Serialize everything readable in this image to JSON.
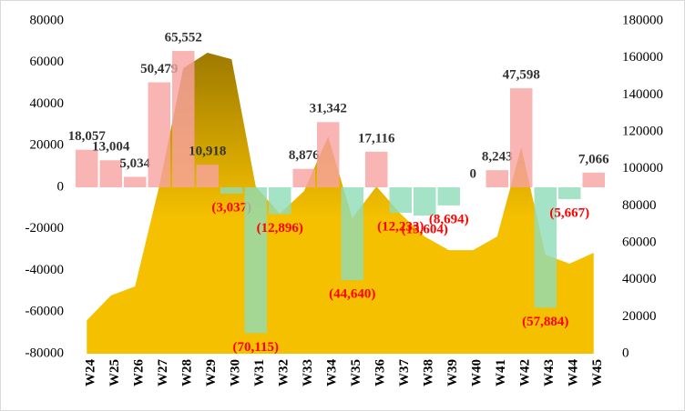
{
  "chart_data": {
    "type": "bar",
    "categories": [
      "W24",
      "W25",
      "W26",
      "W27",
      "W28",
      "W29",
      "W30",
      "W31",
      "W32",
      "W33",
      "W34",
      "W35",
      "W36",
      "W37",
      "W38",
      "W39",
      "W40",
      "W41",
      "W42",
      "W43",
      "W44",
      "W45"
    ],
    "series": [
      {
        "type": "bar",
        "values": [
          18057,
          13004,
          5034,
          50479,
          65552,
          10918,
          -3037,
          -70115,
          -12896,
          8876,
          31342,
          -44640,
          17116,
          -12233,
          -13604,
          -8694,
          0,
          8243,
          47598,
          -57884,
          -5667,
          7066
        ],
        "value_labels": [
          "18,057",
          "13,004",
          "5,034",
          "50,479",
          "65,552",
          "10,918",
          "(3,037)",
          "(70,115)",
          "(12,896)",
          "8,876",
          "31,342",
          "(44,640)",
          "17,116",
          "(12,233)",
          "(13,604)",
          "(8,694)",
          "0",
          "8,243",
          "47,598",
          "(57,884)",
          "(5,667)",
          "7,066"
        ],
        "color": "#f7a1a1",
        "negative_color": "#8fdcb8",
        "label_color": "#333333",
        "negative_label_color": "#ff0000"
      },
      {
        "type": "area",
        "axis": "y2",
        "values": [
          18000,
          31500,
          36400,
          90500,
          154400,
          162800,
          159300,
          90500,
          75700,
          88000,
          117500,
          73300,
          90500,
          75700,
          63400,
          56000,
          56000,
          63400,
          111600,
          53600,
          48700,
          54600
        ],
        "color": "#f5c000",
        "top_color": "#9e7a00"
      }
    ],
    "ylim": [
      -80000,
      80000
    ],
    "yticks": [
      -80000,
      -60000,
      -40000,
      -20000,
      0,
      20000,
      40000,
      60000,
      80000
    ],
    "y2lim": [
      0,
      180000
    ],
    "y2ticks": [
      0,
      20000,
      40000,
      60000,
      80000,
      100000,
      120000,
      140000,
      160000,
      180000
    ],
    "grid": false
  }
}
